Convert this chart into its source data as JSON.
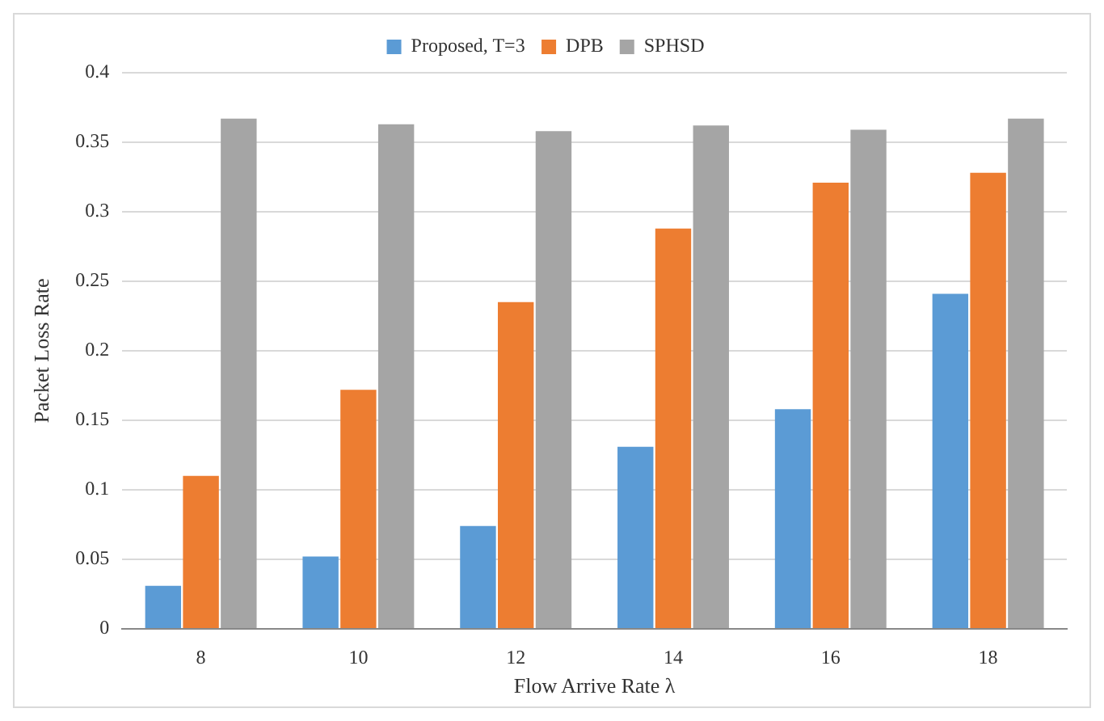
{
  "chart_data": {
    "type": "bar",
    "xlabel": "Flow Arrive Rate λ",
    "ylabel": "Packet Loss Rate",
    "categories": [
      "8",
      "10",
      "12",
      "14",
      "16",
      "18"
    ],
    "series": [
      {
        "name": "Proposed, T=3",
        "color": "#5b9bd5",
        "values": [
          0.031,
          0.052,
          0.074,
          0.131,
          0.158,
          0.241
        ]
      },
      {
        "name": "DPB",
        "color": "#ed7d31",
        "values": [
          0.11,
          0.172,
          0.235,
          0.288,
          0.321,
          0.328
        ]
      },
      {
        "name": "SPHSD",
        "color": "#a5a5a5",
        "values": [
          0.367,
          0.363,
          0.358,
          0.362,
          0.359,
          0.367
        ]
      }
    ],
    "ylim": [
      0,
      0.4
    ],
    "yticks": [
      0,
      0.05,
      0.1,
      0.15,
      0.2,
      0.25,
      0.3,
      0.35,
      0.4
    ],
    "grid": "y",
    "legend": "top"
  }
}
